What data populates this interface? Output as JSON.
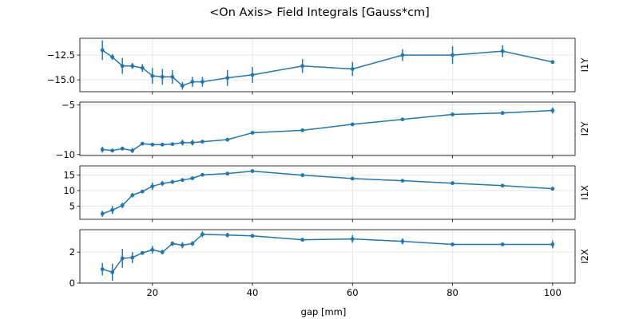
{
  "figure": {
    "title": "<On Axis> Field Integrals [Gauss*cm]",
    "xlabel": "gap [mm]"
  },
  "colors": {
    "series": "#1f77b4",
    "grid": "#e6e6e6",
    "axes": "#000000"
  },
  "chart_data": [
    {
      "type": "line",
      "panel_label": "I1Y",
      "x": [
        10,
        12,
        14,
        16,
        18,
        20,
        22,
        24,
        26,
        28,
        30,
        35,
        40,
        50,
        60,
        70,
        80,
        90,
        100
      ],
      "y": [
        -12.0,
        -12.7,
        -13.6,
        -13.6,
        -13.8,
        -14.6,
        -14.7,
        -14.7,
        -15.6,
        -15.2,
        -15.2,
        -14.8,
        -14.5,
        -13.6,
        -13.9,
        -12.5,
        -12.5,
        -12.1,
        -13.2
      ],
      "yerr": [
        1.0,
        0.3,
        0.8,
        0.3,
        0.4,
        0.8,
        0.8,
        0.7,
        0.4,
        0.5,
        0.5,
        0.8,
        0.8,
        0.7,
        0.7,
        0.6,
        0.9,
        0.6,
        0.1
      ],
      "yticks": [
        -15.0,
        -12.5
      ],
      "ytick_labels": [
        "−15.0",
        "−12.5"
      ],
      "ylim": [
        -16.2,
        -10.8
      ]
    },
    {
      "type": "line",
      "panel_label": "I2Y",
      "x": [
        10,
        12,
        14,
        16,
        18,
        20,
        22,
        24,
        26,
        28,
        30,
        35,
        40,
        50,
        60,
        70,
        80,
        90,
        100
      ],
      "y": [
        -9.5,
        -9.6,
        -9.4,
        -9.6,
        -8.9,
        -9.0,
        -9.0,
        -8.95,
        -8.8,
        -8.8,
        -8.7,
        -8.5,
        -7.8,
        -7.55,
        -6.95,
        -6.45,
        -5.95,
        -5.8,
        -5.55
      ],
      "yerr": [
        0.3,
        0.15,
        0.2,
        0.25,
        0.15,
        0.1,
        0.1,
        0.15,
        0.3,
        0.3,
        0.1,
        0.05,
        0.05,
        0.1,
        0.1,
        0.1,
        0.1,
        0.1,
        0.3
      ],
      "yticks": [
        -10,
        -5
      ],
      "ytick_labels": [
        "−10",
        "−5"
      ],
      "ylim": [
        -10.1,
        -4.7
      ]
    },
    {
      "type": "line",
      "panel_label": "I1X",
      "x": [
        10,
        12,
        14,
        16,
        18,
        20,
        22,
        24,
        26,
        28,
        30,
        35,
        40,
        50,
        60,
        70,
        80,
        90,
        100
      ],
      "y": [
        2.5,
        3.7,
        5.2,
        8.5,
        9.7,
        11.4,
        12.3,
        12.8,
        13.4,
        14.0,
        15.1,
        15.5,
        16.3,
        15.0,
        13.9,
        13.2,
        12.4,
        11.6,
        10.6
      ],
      "yerr": [
        1.0,
        1.3,
        0.9,
        0.7,
        0.5,
        1.2,
        0.8,
        0.6,
        0.5,
        0.4,
        0.5,
        0.3,
        0.6,
        0.4,
        0.3,
        0.3,
        0.4,
        0.5,
        0.4
      ],
      "yticks": [
        5,
        10,
        15
      ],
      "ytick_labels": [
        "5",
        "10",
        "15"
      ],
      "ylim": [
        0.7,
        18.0
      ]
    },
    {
      "type": "line",
      "panel_label": "I2X",
      "x": [
        10,
        12,
        14,
        16,
        18,
        20,
        22,
        24,
        26,
        28,
        30,
        35,
        40,
        50,
        60,
        70,
        80,
        90,
        100
      ],
      "y": [
        0.9,
        0.7,
        1.6,
        1.65,
        1.95,
        2.15,
        2.0,
        2.55,
        2.45,
        2.55,
        3.15,
        3.1,
        3.05,
        2.8,
        2.85,
        2.7,
        2.5,
        2.5,
        2.5
      ],
      "yerr": [
        0.4,
        0.55,
        0.6,
        0.35,
        0.1,
        0.25,
        0.15,
        0.15,
        0.2,
        0.15,
        0.2,
        0.15,
        0.1,
        0.1,
        0.25,
        0.2,
        0.1,
        0.1,
        0.25
      ],
      "yticks": [
        0,
        2
      ],
      "ytick_labels": [
        "0",
        "2"
      ],
      "ylim": [
        0,
        3.45
      ]
    }
  ],
  "x_axis": {
    "xlim": [
      5.5,
      104.5
    ],
    "xticks": [
      20,
      40,
      60,
      80,
      100
    ],
    "xtick_labels": [
      "20",
      "40",
      "60",
      "80",
      "100"
    ]
  }
}
